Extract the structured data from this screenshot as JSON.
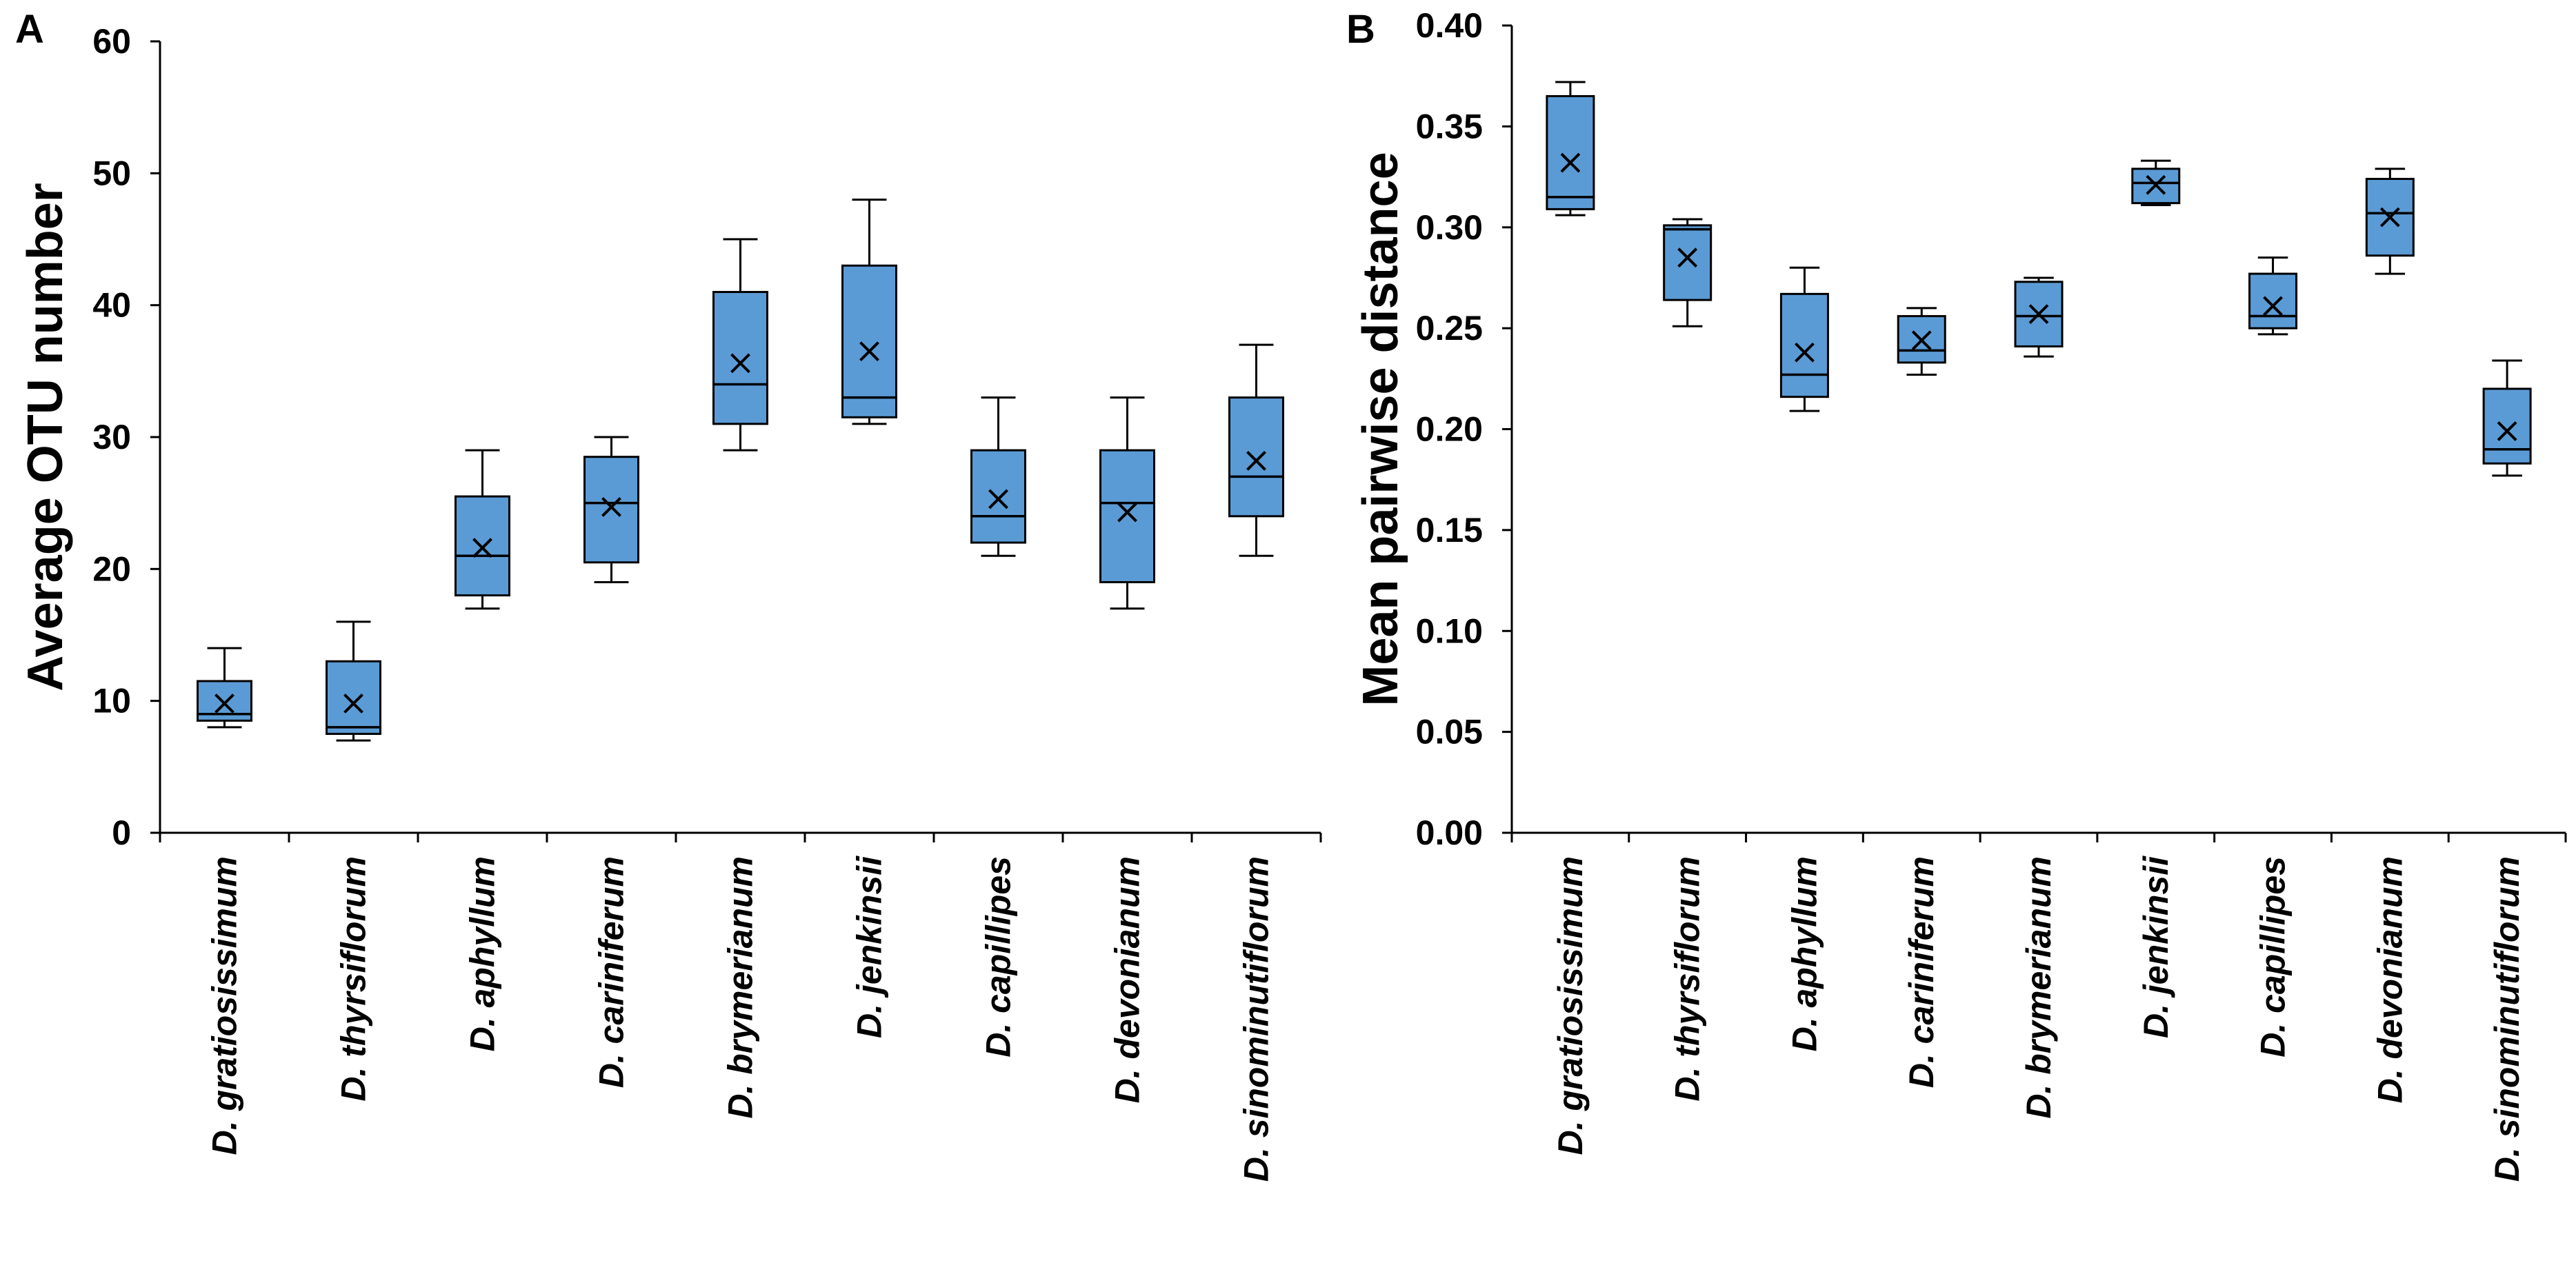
{
  "chart_data": [
    {
      "type": "box",
      "panel": "A",
      "title": "",
      "xlabel": "",
      "ylabel": "Average OTU number",
      "ylim": [
        0,
        60
      ],
      "yticks": [
        0,
        10,
        20,
        30,
        40,
        50,
        60
      ],
      "ytick_labels": [
        "0",
        "10",
        "20",
        "30",
        "40",
        "50",
        "60"
      ],
      "categories": [
        "D. gratiosissimum",
        "D. thyrsiflorum",
        "D. aphyllum",
        "D. cariniferum",
        "D. brymerianum",
        "D. jenkinsii",
        "D. capillipes",
        "D. devonianum",
        "D. sinominutiflorum"
      ],
      "boxes": [
        {
          "min": 8,
          "q1": 8.5,
          "median": 9,
          "q3": 11.5,
          "max": 14,
          "mean": 9.8
        },
        {
          "min": 7,
          "q1": 7.5,
          "median": 8,
          "q3": 13,
          "max": 16,
          "mean": 9.8
        },
        {
          "min": 17,
          "q1": 18,
          "median": 21,
          "q3": 25.5,
          "max": 29,
          "mean": 21.6
        },
        {
          "min": 19,
          "q1": 20.5,
          "median": 25,
          "q3": 28.5,
          "max": 30,
          "mean": 24.7
        },
        {
          "min": 29,
          "q1": 31,
          "median": 34,
          "q3": 41,
          "max": 45,
          "mean": 35.6
        },
        {
          "min": 31,
          "q1": 31.5,
          "median": 33,
          "q3": 43,
          "max": 48,
          "mean": 36.5
        },
        {
          "min": 21,
          "q1": 22,
          "median": 24,
          "q3": 29,
          "max": 33,
          "mean": 25.3
        },
        {
          "min": 17,
          "q1": 19,
          "median": 25,
          "q3": 29,
          "max": 33,
          "mean": 24.3
        },
        {
          "min": 21,
          "q1": 24,
          "median": 27,
          "q3": 33,
          "max": 37,
          "mean": 28.2
        }
      ]
    },
    {
      "type": "box",
      "panel": "B",
      "title": "",
      "xlabel": "",
      "ylabel": "Mean pairwise distance",
      "ylim": [
        0,
        0.4
      ],
      "yticks": [
        0,
        0.05,
        0.1,
        0.15,
        0.2,
        0.25,
        0.3,
        0.35,
        0.4
      ],
      "ytick_labels": [
        "0.00",
        "0.05",
        "0.10",
        "0.15",
        "0.20",
        "0.25",
        "0.30",
        "0.35",
        "0.40"
      ],
      "categories": [
        "D. gratiosissimum",
        "D. thyrsiflorum",
        "D. aphyllum",
        "D. cariniferum",
        "D. brymerianum",
        "D. jenkinsii",
        "D. capillipes",
        "D. devonianum",
        "D. sinominutiflorum"
      ],
      "boxes": [
        {
          "min": 0.306,
          "q1": 0.309,
          "median": 0.315,
          "q3": 0.365,
          "max": 0.372,
          "mean": 0.332
        },
        {
          "min": 0.251,
          "q1": 0.264,
          "median": 0.299,
          "q3": 0.301,
          "max": 0.304,
          "mean": 0.285
        },
        {
          "min": 0.209,
          "q1": 0.216,
          "median": 0.227,
          "q3": 0.267,
          "max": 0.28,
          "mean": 0.238
        },
        {
          "min": 0.227,
          "q1": 0.233,
          "median": 0.239,
          "q3": 0.256,
          "max": 0.26,
          "mean": 0.244
        },
        {
          "min": 0.236,
          "q1": 0.241,
          "median": 0.256,
          "q3": 0.273,
          "max": 0.275,
          "mean": 0.257
        },
        {
          "min": 0.311,
          "q1": 0.312,
          "median": 0.322,
          "q3": 0.329,
          "max": 0.333,
          "mean": 0.321
        },
        {
          "min": 0.247,
          "q1": 0.25,
          "median": 0.256,
          "q3": 0.277,
          "max": 0.285,
          "mean": 0.261
        },
        {
          "min": 0.277,
          "q1": 0.286,
          "median": 0.307,
          "q3": 0.324,
          "max": 0.329,
          "mean": 0.305
        },
        {
          "min": 0.177,
          "q1": 0.183,
          "median": 0.19,
          "q3": 0.22,
          "max": 0.234,
          "mean": 0.199
        }
      ]
    }
  ]
}
